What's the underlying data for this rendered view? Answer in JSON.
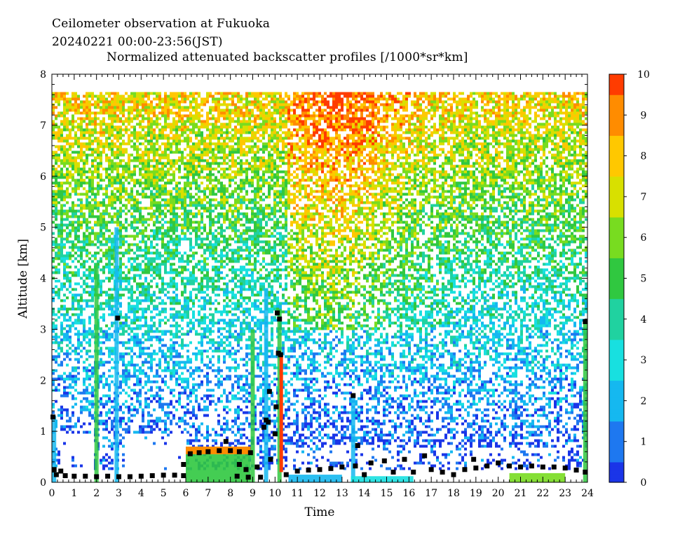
{
  "chart_data": {
    "type": "heatmap",
    "title_line1": "Ceilometer observation at Fukuoka",
    "title_line2": "20240221  00:00-23:56(JST)",
    "title": "Normalized attenuated backscatter profiles [/1000*sr*km]",
    "xlabel": "Time",
    "ylabel": "Altitude [km]",
    "xlim": [
      0,
      24
    ],
    "ylim": [
      0,
      8
    ],
    "x_ticks": [
      "0",
      "1",
      "2",
      "3",
      "4",
      "5",
      "6",
      "7",
      "8",
      "9",
      "10",
      "11",
      "12",
      "13",
      "14",
      "15",
      "16",
      "17",
      "18",
      "19",
      "20",
      "21",
      "22",
      "23",
      "24"
    ],
    "y_ticks": [
      "0",
      "1",
      "2",
      "3",
      "4",
      "5",
      "6",
      "7",
      "8"
    ],
    "colorbar": {
      "range": [
        0,
        10
      ],
      "ticks": [
        "0",
        "1",
        "2",
        "3",
        "4",
        "5",
        "6",
        "7",
        "8",
        "9",
        "10"
      ],
      "colors": [
        "#1a35e8",
        "#1e78f0",
        "#15b8f0",
        "#18e0e0",
        "#20d2a0",
        "#30c840",
        "#78dc20",
        "#d8e000",
        "#ffc800",
        "#ff8c00",
        "#ff3c00"
      ]
    },
    "cloud_base_markers": [
      {
        "x": 0.05,
        "y": 1.28
      },
      {
        "x": 0.1,
        "y": 0.25
      },
      {
        "x": 0.2,
        "y": 0.15
      },
      {
        "x": 0.4,
        "y": 0.22
      },
      {
        "x": 0.6,
        "y": 0.13
      },
      {
        "x": 1.0,
        "y": 0.12
      },
      {
        "x": 1.5,
        "y": 0.12
      },
      {
        "x": 2.0,
        "y": 0.11
      },
      {
        "x": 2.5,
        "y": 0.12
      },
      {
        "x": 2.95,
        "y": 3.22
      },
      {
        "x": 3.0,
        "y": 0.11
      },
      {
        "x": 3.5,
        "y": 0.11
      },
      {
        "x": 4.0,
        "y": 0.12
      },
      {
        "x": 4.5,
        "y": 0.13
      },
      {
        "x": 5.0,
        "y": 0.14
      },
      {
        "x": 5.5,
        "y": 0.14
      },
      {
        "x": 5.9,
        "y": 0.13
      },
      {
        "x": 5.9,
        "y": 0.35
      },
      {
        "x": 6.2,
        "y": 0.56
      },
      {
        "x": 6.6,
        "y": 0.58
      },
      {
        "x": 7.0,
        "y": 0.6
      },
      {
        "x": 7.5,
        "y": 0.62
      },
      {
        "x": 7.8,
        "y": 0.8
      },
      {
        "x": 8.0,
        "y": 0.62
      },
      {
        "x": 8.4,
        "y": 0.6
      },
      {
        "x": 8.9,
        "y": 0.58
      },
      {
        "x": 8.4,
        "y": 0.35
      },
      {
        "x": 8.7,
        "y": 0.25
      },
      {
        "x": 8.3,
        "y": 0.12
      },
      {
        "x": 8.8,
        "y": 0.1
      },
      {
        "x": 9.2,
        "y": 0.3
      },
      {
        "x": 9.35,
        "y": 0.1
      },
      {
        "x": 9.5,
        "y": 1.08
      },
      {
        "x": 9.6,
        "y": 1.22
      },
      {
        "x": 9.7,
        "y": 1.18
      },
      {
        "x": 9.75,
        "y": 1.78
      },
      {
        "x": 9.8,
        "y": 0.45
      },
      {
        "x": 10.0,
        "y": 0.95
      },
      {
        "x": 10.05,
        "y": 1.48
      },
      {
        "x": 10.1,
        "y": 3.32
      },
      {
        "x": 10.2,
        "y": 3.2
      },
      {
        "x": 10.15,
        "y": 2.53
      },
      {
        "x": 10.25,
        "y": 2.5
      },
      {
        "x": 10.5,
        "y": 0.15
      },
      {
        "x": 11.0,
        "y": 0.22
      },
      {
        "x": 11.5,
        "y": 0.24
      },
      {
        "x": 12.0,
        "y": 0.25
      },
      {
        "x": 12.5,
        "y": 0.27
      },
      {
        "x": 13.0,
        "y": 0.3
      },
      {
        "x": 13.5,
        "y": 1.7
      },
      {
        "x": 13.7,
        "y": 0.72
      },
      {
        "x": 13.6,
        "y": 0.32
      },
      {
        "x": 14.0,
        "y": 0.15
      },
      {
        "x": 14.3,
        "y": 0.38
      },
      {
        "x": 14.9,
        "y": 0.42
      },
      {
        "x": 15.3,
        "y": 0.2
      },
      {
        "x": 15.8,
        "y": 0.45
      },
      {
        "x": 16.2,
        "y": 0.2
      },
      {
        "x": 16.7,
        "y": 0.52
      },
      {
        "x": 17.0,
        "y": 0.25
      },
      {
        "x": 17.5,
        "y": 0.2
      },
      {
        "x": 18.0,
        "y": 0.15
      },
      {
        "x": 18.5,
        "y": 0.25
      },
      {
        "x": 18.9,
        "y": 0.45
      },
      {
        "x": 19.0,
        "y": 0.28
      },
      {
        "x": 19.5,
        "y": 0.32
      },
      {
        "x": 20.0,
        "y": 0.38
      },
      {
        "x": 20.5,
        "y": 0.32
      },
      {
        "x": 21.0,
        "y": 0.3
      },
      {
        "x": 21.5,
        "y": 0.32
      },
      {
        "x": 22.0,
        "y": 0.3
      },
      {
        "x": 22.5,
        "y": 0.3
      },
      {
        "x": 23.0,
        "y": 0.28
      },
      {
        "x": 23.5,
        "y": 0.24
      },
      {
        "x": 23.9,
        "y": 3.15
      },
      {
        "x": 23.9,
        "y": 0.2
      }
    ]
  }
}
